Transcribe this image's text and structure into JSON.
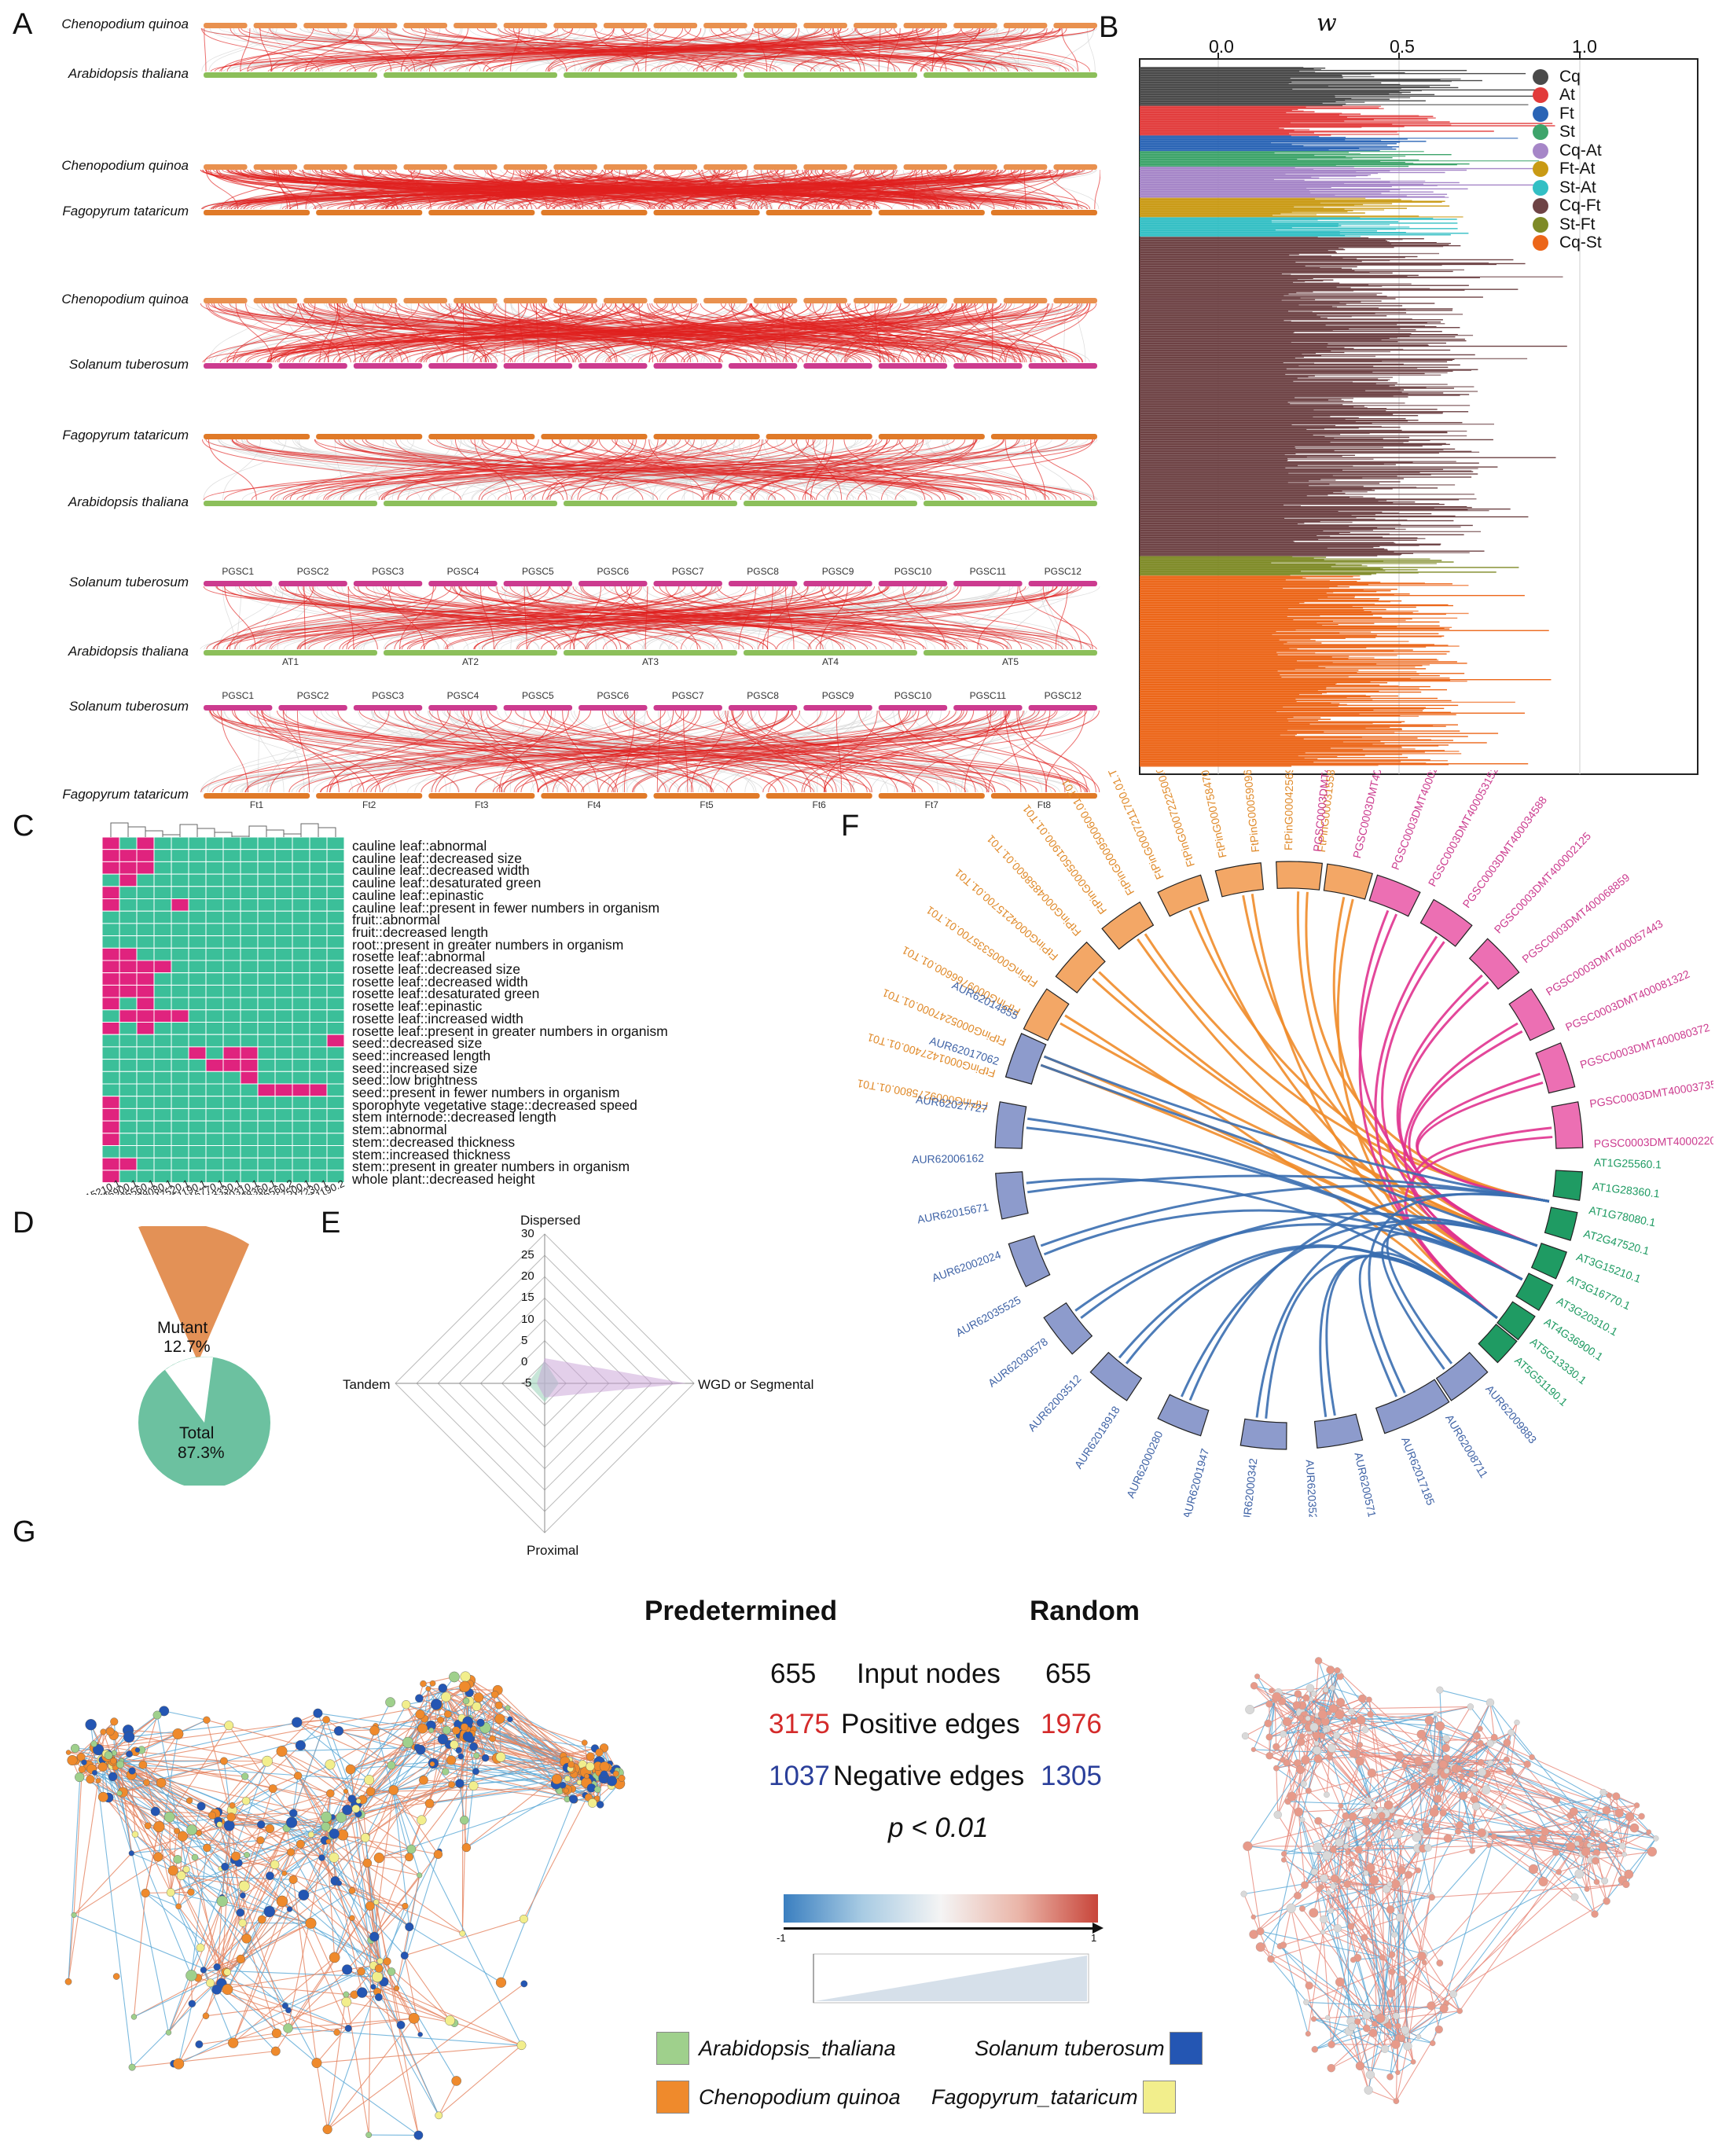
{
  "panels": {
    "A": "A",
    "B": "B",
    "C": "C",
    "D": "D",
    "E": "E",
    "F": "F",
    "G": "G"
  },
  "colors": {
    "cq": "#e9914f",
    "at": "#8cbf5a",
    "ft": "#e07a28",
    "st": "#cc3b8f",
    "link_red": "#e0201e",
    "link_grey": "#d2d2d2",
    "heat_bg": "#3bbf99",
    "heat_on": "#e0237e"
  },
  "panelA": {
    "pairs": [
      {
        "top": "Chenopodium quinoa",
        "bottom": "Arabidopsis thaliana",
        "top_color": "#e9914f",
        "bottom_color": "#8cbf5a",
        "density": 0.35
      },
      {
        "top": "Chenopodium quinoa",
        "bottom": "Fagopyrum tataricum",
        "top_color": "#e9914f",
        "bottom_color": "#e07a28",
        "density": 1.0
      },
      {
        "top": "Chenopodium quinoa",
        "bottom": "Solanum tuberosum",
        "top_color": "#e9914f",
        "bottom_color": "#cc3b8f",
        "density": 0.75
      },
      {
        "top": "Fagopyrum tataricum",
        "bottom": "Arabidopsis thaliana",
        "top_color": "#e07a28",
        "bottom_color": "#8cbf5a",
        "density": 0.25
      },
      {
        "top": "Solanum tuberosum",
        "bottom": "Arabidopsis thaliana",
        "top_color": "#cc3b8f",
        "bottom_color": "#8cbf5a",
        "density": 0.35
      },
      {
        "top": "Solanum tuberosum",
        "bottom": "Fagopyrum tataricum",
        "top_color": "#cc3b8f",
        "bottom_color": "#e07a28",
        "density": 0.35
      }
    ],
    "pgsc": [
      "PGSC1",
      "PGSC2",
      "PGSC3",
      "PGSC4",
      "PGSC5",
      "PGSC6",
      "PGSC7",
      "PGSC8",
      "PGSC9",
      "PGSC10",
      "PGSC11",
      "PGSC12"
    ],
    "at": [
      "AT1",
      "AT2",
      "AT3",
      "AT4",
      "AT5"
    ],
    "ft": [
      "Ft1",
      "Ft2",
      "Ft3",
      "Ft4",
      "Ft5",
      "Ft6",
      "Ft7",
      "Ft8"
    ]
  },
  "panelB": {
    "axis_title": "w",
    "ticks": [
      "0.0",
      "0.5",
      "1.0"
    ],
    "tick_values": [
      0.0,
      0.5,
      1.0
    ],
    "legend": [
      {
        "name": "Cq",
        "color": "#4a4a4a"
      },
      {
        "name": "At",
        "color": "#e23b3b"
      },
      {
        "name": "Ft",
        "color": "#2a64b5"
      },
      {
        "name": "St",
        "color": "#3ea46b"
      },
      {
        "name": "Cq-At",
        "color": "#a686c8"
      },
      {
        "name": "Ft-At",
        "color": "#c99a14"
      },
      {
        "name": "St-At",
        "color": "#33bfc4"
      },
      {
        "name": "Cq-Ft",
        "color": "#6e4345"
      },
      {
        "name": "St-Ft",
        "color": "#7e8a26"
      },
      {
        "name": "Cq-St",
        "color": "#ec6619"
      }
    ]
  },
  "panelC": {
    "traits": [
      "cauline leaf::abnormal",
      "cauline leaf::decreased size",
      "cauline leaf::decreased width",
      "cauline leaf::desaturated green",
      "cauline leaf::epinastic",
      "cauline leaf::present in fewer numbers in organism",
      "fruit::abnormal",
      "fruit::decreased length",
      "root::present in greater numbers in organism",
      "rosette leaf::abnormal",
      "rosette leaf::decreased size",
      "rosette leaf::decreased width",
      "rosette leaf::desaturated green",
      "rosette leaf::epinastic",
      "rosette leaf::increased width",
      "rosette leaf::present in greater numbers in organism",
      "seed::decreased size",
      "seed::increased length",
      "seed::increased size",
      "seed::low brightness",
      "seed::present in fewer numbers in organism",
      "sporophyte vegetative stage::decreased speed",
      "stem internode::decreased length",
      "stem::abnormal",
      "stem::decreased thickness",
      "stem::increased thickness",
      "stem::present in greater numbers in organism",
      "whole plant::decreased height"
    ],
    "genes": [
      "AT3G15210.1",
      "AT4G36900.1",
      "AT1G25560.1",
      "AT1G78080.1",
      "AT2G47520.1",
      "AT5G51190.1",
      "AT3G16770.1",
      "AT5G13330.1",
      "AT3G20310.1",
      "AT1G28360.1",
      "AT1G25560.2",
      "AT4G17500.1",
      "AT5G47230.1",
      "AT5G51190.2"
    ]
  },
  "panelD": {
    "mutant_label": "Mutant",
    "mutant_pct": "12.7%",
    "total_label": "Total",
    "total_pct": "87.3%",
    "mutant_value": 12.7,
    "total_value": 87.3
  },
  "panelE": {
    "axes": [
      "Dispersed",
      "WGD or Segmental",
      "Proximal",
      "Tandem"
    ],
    "ticks": [
      "30",
      "25",
      "20",
      "15",
      "10",
      "5",
      "0",
      "-5"
    ]
  },
  "panelF": {
    "ft_genes": [
      "FtPinG0009275800.01.T01",
      "FtPinG0001427400.01.T01",
      "FtPinG0005247000.01.T01",
      "FtPinG0009766600.01.T01",
      "FtPinG0005335700.01.T01",
      "FtPinG0004215700.01.T01",
      "FtPinG0004858600.01.T01",
      "FtPinG0005501900.01.T01",
      "FtPinG0009500600.01.T01",
      "FtPinG0007211700.01.T01",
      "FtPinG0007222500.01.T01",
      "FtPinG0007584700.01.T01",
      "FtPinG0005909600.01.T01",
      "FtPinG0004256900.01.T01",
      "FtPinG0003155800.01.T01"
    ],
    "st_genes": [
      "PGSC0003DMT400010228",
      "PGSC0003DMT400033391",
      "PGSC0003DMT400027832",
      "PGSC0003DMT400053152",
      "PGSC0003DMT400034588",
      "PGSC0003DMT400002125",
      "PGSC0003DMT400068859",
      "PGSC0003DMT400057443",
      "PGSC0003DMT400081322",
      "PGSC0003DMT400080372",
      "PGSC0003DMT400037359",
      "PGSC0003DMT40002202"
    ],
    "at_genes": [
      "AT1G25560.1",
      "AT1G28360.1",
      "AT1G78080.1",
      "AT2G47520.1",
      "AT3G15210.1",
      "AT3G16770.1",
      "AT3G20310.1",
      "AT4G36900.1",
      "AT5G13330.1",
      "AT5G51190.1"
    ],
    "cq_genes": [
      "AUR62009883",
      "AUR62008711",
      "AUR62017185",
      "AUR62005714",
      "AUR62035279",
      "AUR62000342",
      "AUR62001947",
      "AUR62000280",
      "AUR62018918",
      "AUR62003512",
      "AUR62030578",
      "AUR62035525",
      "AUR62002024",
      "AUR62015671",
      "AUR62006162",
      "AUR62027727",
      "AUR62017062",
      "AUR62014855"
    ]
  },
  "panelG": {
    "left_title": "Predetermined",
    "right_title": "Random",
    "rows": [
      {
        "left": "655",
        "label": "Input nodes",
        "right": "655",
        "left_color": "#111111",
        "right_color": "#111111"
      },
      {
        "left": "3175",
        "label": "Positive edges",
        "right": "1976",
        "left_color": "#d42a2a",
        "right_color": "#d42a2a"
      },
      {
        "left": "1037",
        "label": "Negative edges",
        "right": "1305",
        "left_color": "#2a3f9a",
        "right_color": "#2a3f9a"
      }
    ],
    "pvalue": "p < 0.01",
    "scale_min": "-1",
    "scale_max": "1",
    "legend": [
      {
        "name": "Arabidopsis_thaliana",
        "color": "#9fd08c"
      },
      {
        "name": "Solanum tuberosum",
        "color": "#2456b3"
      },
      {
        "name": "Chenopodium quinoa",
        "color": "#ef8a2c"
      },
      {
        "name": "Fagopyrum_tataricum",
        "color": "#f2ee8c"
      }
    ]
  }
}
